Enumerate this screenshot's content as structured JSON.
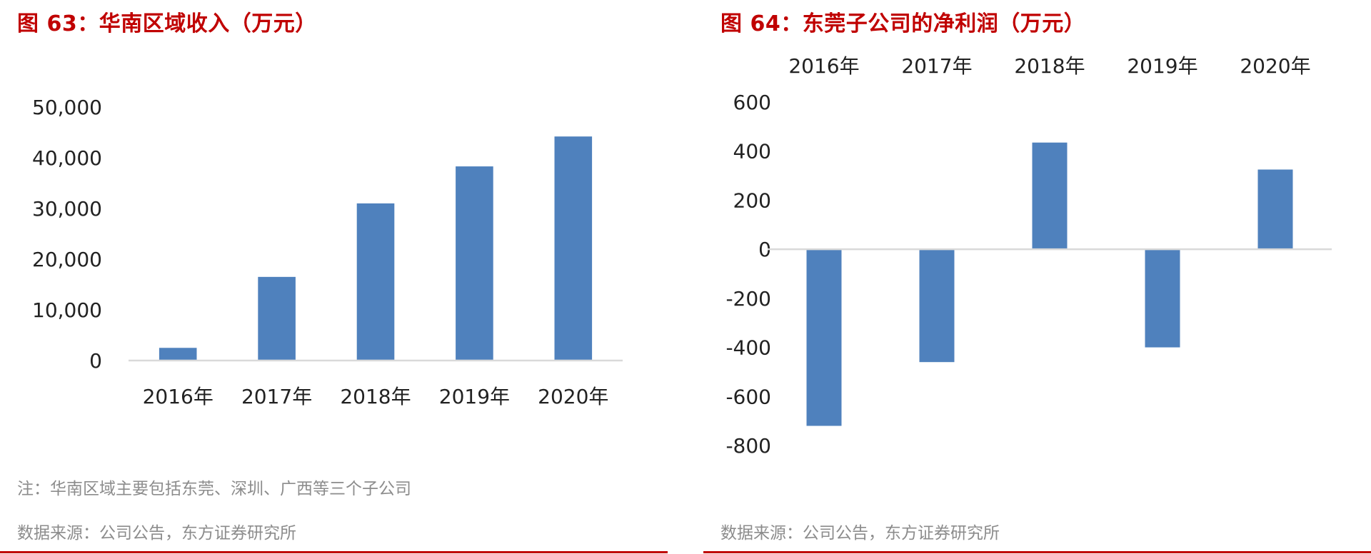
{
  "colors": {
    "bar": "#4f81bd",
    "title": "#c00000",
    "rule": "#c00000",
    "axis": "#d9d9d9",
    "note": "#8c8c8c"
  },
  "left": {
    "title": "图 63：华南区域收入（万元）",
    "note": "注：华南区域主要包括东莞、深圳、广西等三个子公司",
    "source": "数据来源：公司公告，东方证券研究所"
  },
  "right": {
    "title": "图 64：东莞子公司的净利润（万元）",
    "source": "数据来源：公司公告，东方证券研究所"
  },
  "chart_data": [
    {
      "type": "bar",
      "categories": [
        "2016年",
        "2017年",
        "2018年",
        "2019年",
        "2020年"
      ],
      "values": [
        2500,
        16500,
        31000,
        38300,
        44200
      ],
      "ylim": [
        0,
        50000
      ],
      "yticks": [
        0,
        10000,
        20000,
        30000,
        40000,
        50000
      ],
      "ytick_labels": [
        "0",
        "10,000",
        "20,000",
        "30,000",
        "40,000",
        "50,000"
      ],
      "category_axis": "bottom",
      "grid": false,
      "legend": "none"
    },
    {
      "type": "bar",
      "categories": [
        "2016年",
        "2017年",
        "2018年",
        "2019年",
        "2020年"
      ],
      "values": [
        -720,
        -460,
        435,
        -400,
        325
      ],
      "ylim": [
        -800,
        600
      ],
      "yticks": [
        -800,
        -600,
        -400,
        -200,
        0,
        200,
        400,
        600
      ],
      "ytick_labels": [
        "-800",
        "-600",
        "-400",
        "-200",
        "0",
        "200",
        "400",
        "600"
      ],
      "category_axis": "top",
      "grid": false,
      "legend": "none"
    }
  ]
}
